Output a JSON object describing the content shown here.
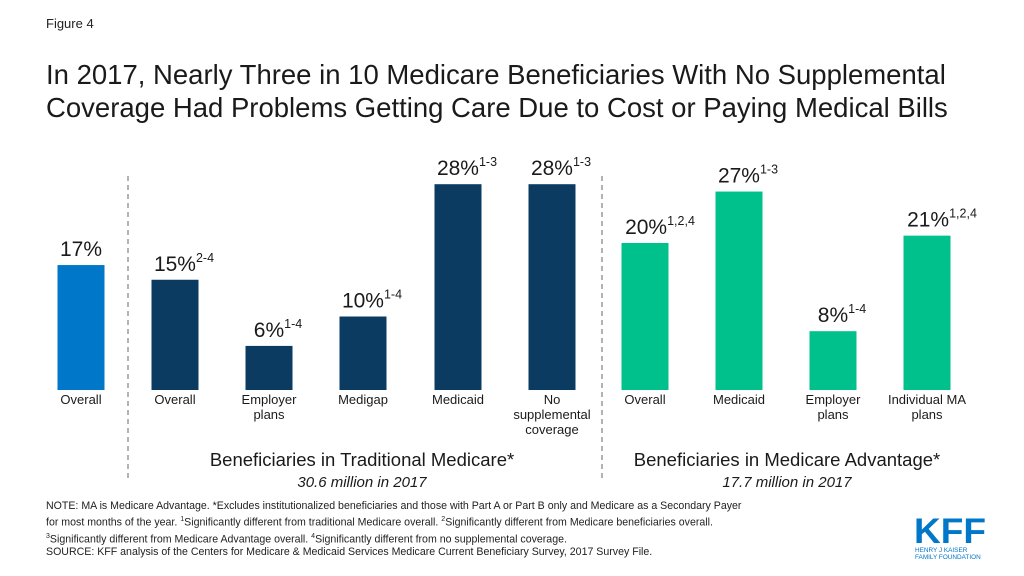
{
  "figure_label": "Figure 4",
  "title": "In 2017, Nearly Three in 10 Medicare Beneficiaries With No Supplemental Coverage Had Problems Getting Care Due to Cost or Paying Medical Bills",
  "chart_data": {
    "type": "bar",
    "ylim": [
      0,
      30
    ],
    "colors": {
      "overall": "#0077c8",
      "traditional": "#0b3b60",
      "advantage": "#00c08b"
    },
    "groups": [
      {
        "key": "overall",
        "label": "",
        "sublabel": "",
        "bars": [
          {
            "category": "Overall",
            "value": 17,
            "value_label": "17%",
            "note": ""
          }
        ]
      },
      {
        "key": "traditional",
        "label": "Beneficiaries in Traditional Medicare*",
        "sublabel": "30.6 million in 2017",
        "bars": [
          {
            "category": "Overall",
            "value": 15,
            "value_label": "15%",
            "note": "2-4"
          },
          {
            "category": "Employer plans",
            "value": 6,
            "value_label": "6%",
            "note": "1-4"
          },
          {
            "category": "Medigap",
            "value": 10,
            "value_label": "10%",
            "note": "1-4"
          },
          {
            "category": "Medicaid",
            "value": 28,
            "value_label": "28%",
            "note": "1-3"
          },
          {
            "category": "No supplemental coverage",
            "value": 28,
            "value_label": "28%",
            "note": "1-3"
          }
        ]
      },
      {
        "key": "advantage",
        "label": "Beneficiaries in Medicare Advantage*",
        "sublabel": "17.7 million in 2017",
        "bars": [
          {
            "category": "Overall",
            "value": 20,
            "value_label": "20%",
            "note": "1,2,4"
          },
          {
            "category": "Medicaid",
            "value": 27,
            "value_label": "27%",
            "note": "1-3"
          },
          {
            "category": "Employer plans",
            "value": 8,
            "value_label": "8%",
            "note": "1-4"
          },
          {
            "category": "Individual MA plans",
            "value": 21,
            "value_label": "21%",
            "note": "1,2,4"
          }
        ]
      }
    ]
  },
  "notes": {
    "line1": "NOTE: MA is Medicare Advantage. *Excludes institutionalized beneficiaries and those with Part A or Part B only and Medicare as a Secondary Payer",
    "line2a": "for most months of the year. ",
    "line2b": "Significantly different from traditional Medicare overall. ",
    "line2c": "Significantly different from Medicare beneficiaries overall.",
    "line3a": "Significantly different from Medicare Advantage overall. ",
    "line3b": "Significantly different from no supplemental coverage.",
    "source": "SOURCE: KFF analysis of the Centers for Medicare & Medicaid Services Medicare Current Beneficiary Survey, 2017 Survey File."
  },
  "logo": {
    "mark": "KFF",
    "line1": "HENRY J KAISER",
    "line2": "FAMILY FOUNDATION",
    "color": "#0077c8"
  }
}
